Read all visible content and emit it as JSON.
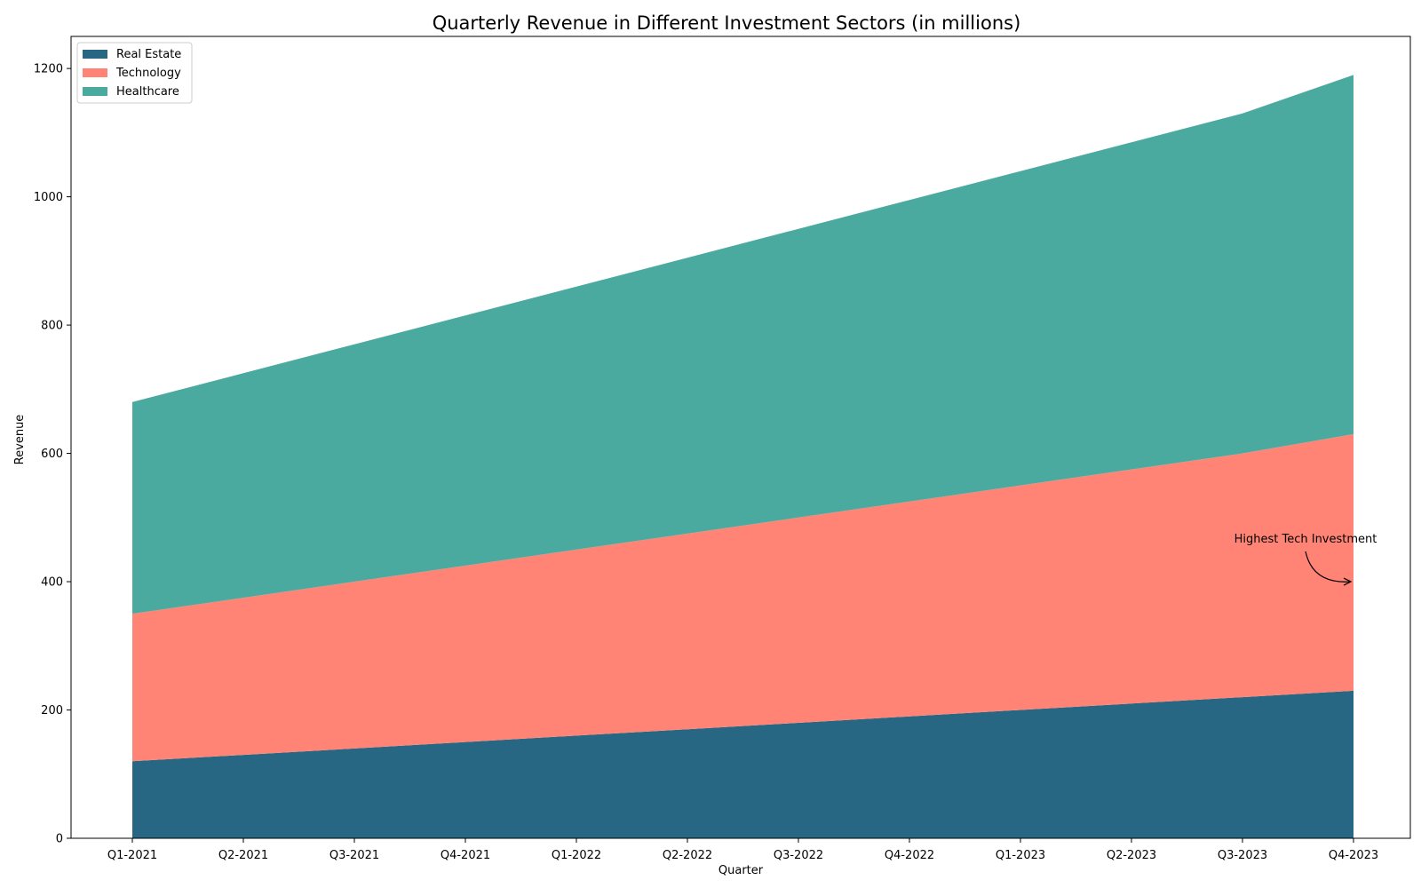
{
  "chart_data": {
    "type": "area",
    "stacked": true,
    "title": "Quarterly Revenue in Different Investment Sectors (in millions)",
    "xlabel": "Quarter",
    "ylabel": "Revenue",
    "categories": [
      "Q1-2021",
      "Q2-2021",
      "Q3-2021",
      "Q4-2021",
      "Q1-2022",
      "Q2-2022",
      "Q3-2022",
      "Q4-2022",
      "Q1-2023",
      "Q2-2023",
      "Q3-2023",
      "Q4-2023"
    ],
    "ylim": [
      0,
      1250
    ],
    "yticks": [
      0,
      200,
      400,
      600,
      800,
      1000,
      1200
    ],
    "grid": false,
    "legend_position": "top-left",
    "series": [
      {
        "name": "Real Estate",
        "color": "#276783",
        "values": [
          120,
          130,
          140,
          150,
          160,
          170,
          180,
          190,
          200,
          210,
          220,
          230
        ]
      },
      {
        "name": "Technology",
        "color": "#ff8475",
        "values": [
          230,
          245,
          260,
          275,
          290,
          305,
          320,
          335,
          350,
          365,
          380,
          400
        ]
      },
      {
        "name": "Healthcare",
        "color": "#4aaa9f",
        "values": [
          330,
          350,
          370,
          390,
          410,
          430,
          450,
          470,
          490,
          510,
          530,
          560
        ]
      }
    ],
    "annotations": [
      {
        "text": "Highest Tech Investment",
        "category": "Q4-2023",
        "y": 400
      }
    ]
  }
}
